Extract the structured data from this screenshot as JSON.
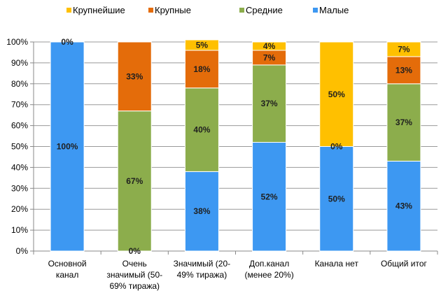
{
  "chart_data": {
    "type": "bar",
    "stacked": true,
    "percent": true,
    "categories": [
      [
        "Основной",
        "канал"
      ],
      [
        "Очень",
        "значимый (50-",
        "69% тиража)"
      ],
      [
        "Значимый (20-",
        "49% тиража)"
      ],
      [
        "Доп.канал",
        "(менее 20%)"
      ],
      [
        "Канала нет"
      ],
      [
        "Общий итог"
      ]
    ],
    "series": [
      {
        "name": "Малые",
        "color": "#3D98F2",
        "values": [
          100,
          0,
          38,
          52,
          50,
          43
        ],
        "labels": [
          "100%",
          "0%",
          "38%",
          "52%",
          "50%",
          "43%"
        ]
      },
      {
        "name": "Средние",
        "color": "#8CAD4C",
        "values": [
          0,
          67,
          40,
          37,
          0,
          37
        ],
        "labels": [
          "",
          "67%",
          "40%",
          "37%",
          "0%",
          "37%"
        ]
      },
      {
        "name": "Крупные",
        "color": "#E46C0A",
        "values": [
          0,
          33,
          18,
          7,
          0,
          13
        ],
        "labels": [
          "",
          "33%",
          "18%",
          "7%",
          "",
          "13%"
        ]
      },
      {
        "name": "Крупнейшие",
        "color": "#FFC000",
        "values": [
          0,
          0,
          5,
          4,
          50,
          7
        ],
        "labels": [
          "0%",
          "",
          "5%",
          "4%",
          "50%",
          "7%"
        ]
      }
    ],
    "legend_order": [
      "Крупнейшие",
      "Крупные",
      "Средние",
      "Малые"
    ],
    "legend_position": "top",
    "ylim": [
      0,
      100
    ],
    "yticks": [
      "0%",
      "10%",
      "20%",
      "30%",
      "40%",
      "50%",
      "60%",
      "70%",
      "80%",
      "90%",
      "100%"
    ],
    "grid": true
  }
}
